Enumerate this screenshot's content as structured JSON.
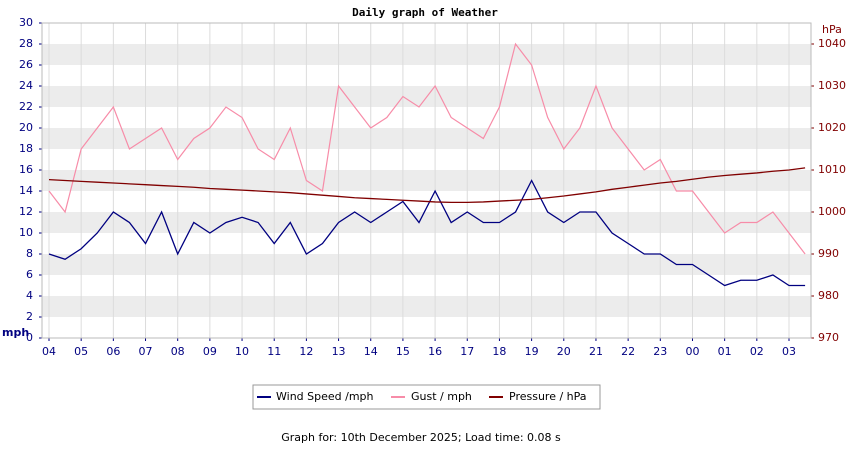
{
  "chart_data": {
    "type": "line",
    "title": "Daily graph of Weather",
    "y_label": "mph",
    "y2_label": "hPa",
    "footer": "Graph for: 10th December 2025; Load time: 0.08 s",
    "categories": [
      "04",
      null,
      "05",
      null,
      "06",
      null,
      "07",
      null,
      "08",
      null,
      "09",
      null,
      "10",
      null,
      "11",
      null,
      "12",
      null,
      "13",
      null,
      "14",
      null,
      "15",
      null,
      "16",
      null,
      "17",
      null,
      "18",
      null,
      "19",
      null,
      "20",
      null,
      "21",
      null,
      "22",
      null,
      "23",
      null,
      "00",
      null,
      "01",
      null,
      "02",
      null,
      "03",
      null
    ],
    "ylim": [
      0,
      30
    ],
    "yticks": [
      0,
      2,
      4,
      6,
      8,
      10,
      12,
      14,
      16,
      18,
      20,
      22,
      24,
      26,
      28,
      30
    ],
    "y2lim": [
      970,
      1045
    ],
    "y2ticks": [
      970,
      980,
      990,
      1000,
      1010,
      1020,
      1030,
      1040
    ],
    "grid": true,
    "legend": "bottom",
    "series": [
      {
        "name": "Wind Speed /mph",
        "color": "#000080",
        "values": [
          8,
          7.5,
          8.5,
          10,
          12,
          11,
          9,
          12,
          8,
          11,
          10,
          11,
          11.5,
          11,
          9,
          11,
          8,
          9,
          11,
          12,
          11,
          12,
          13,
          11,
          14,
          11,
          12,
          11,
          11,
          12,
          15,
          12,
          11,
          12,
          12,
          10,
          9,
          8,
          8,
          7,
          7,
          6,
          5,
          5.5,
          5.5,
          6,
          5,
          5
        ]
      },
      {
        "name": "Gust / mph",
        "color": "#f78ca8",
        "values": [
          14,
          12,
          18,
          20,
          22,
          18,
          19,
          20,
          17,
          19,
          20,
          22,
          21,
          18,
          17,
          20,
          15,
          14,
          24,
          22,
          20,
          21,
          23,
          22,
          24,
          21,
          20,
          19,
          22,
          28,
          26,
          21,
          18,
          20,
          24,
          20,
          18,
          16,
          17,
          14,
          14,
          12,
          10,
          11,
          11,
          12,
          10,
          8
        ]
      },
      {
        "name": "Pressure / hPa",
        "color": "#800000",
        "axis": "y2",
        "values": [
          1007.7,
          1007.5,
          1007.3,
          1007.1,
          1006.9,
          1006.7,
          1006.5,
          1006.3,
          1006.1,
          1005.9,
          1005.6,
          1005.4,
          1005.2,
          1005.0,
          1004.8,
          1004.6,
          1004.3,
          1004.0,
          1003.7,
          1003.4,
          1003.2,
          1003.0,
          1002.8,
          1002.6,
          1002.4,
          1002.3,
          1002.3,
          1002.4,
          1002.6,
          1002.8,
          1003.0,
          1003.4,
          1003.8,
          1004.3,
          1004.8,
          1005.4,
          1005.9,
          1006.4,
          1006.9,
          1007.3,
          1007.8,
          1008.3,
          1008.7,
          1009.0,
          1009.3,
          1009.7,
          1010.0,
          1010.5
        ]
      }
    ]
  }
}
